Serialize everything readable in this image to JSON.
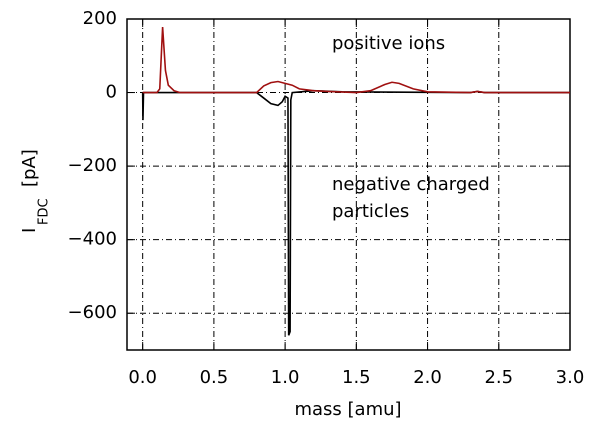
{
  "chart_data": {
    "type": "line",
    "xlabel": "mass [amu]",
    "ylabel": "I",
    "ylabel_sub": "FDC",
    "ylabel_unit": "[pA]",
    "annotations": [
      "positive ions",
      "negative charged",
      "particles"
    ],
    "xlim": [
      -0.11,
      3.0
    ],
    "xticks": [
      {
        "value": 0,
        "label": "0.0"
      },
      0.5,
      {
        "value": 1,
        "label": "1.0"
      },
      1.5,
      {
        "value": 2,
        "label": "2.0"
      },
      2.5,
      {
        "value": 3,
        "label": "3.0"
      }
    ],
    "ylim": [
      -700,
      200
    ],
    "yticks": [
      {
        "value": -600,
        "label": "−600"
      },
      {
        "value": -400,
        "label": "−400"
      },
      {
        "value": -200,
        "label": "−200"
      },
      0,
      200
    ],
    "grid": true,
    "series": [
      {
        "color": "#000000",
        "x": [
          0.0,
          0.002,
          0.006,
          0.1,
          0.8,
          0.85,
          0.9,
          0.95,
          0.98,
          1.0,
          1.02,
          1.025,
          1.035,
          1.04,
          1.05,
          1.2,
          1.4,
          2.3,
          2.35,
          2.4,
          3.0
        ],
        "values": [
          0,
          -75,
          0,
          0,
          0,
          -15,
          -30,
          -35,
          -25,
          -10,
          -15,
          -660,
          -650,
          -20,
          0,
          5,
          2,
          0,
          3,
          0,
          0
        ]
      },
      {
        "color": "#a01010",
        "x": [
          0.0,
          0.1,
          0.12,
          0.14,
          0.16,
          0.18,
          0.22,
          0.26,
          0.8,
          0.85,
          0.9,
          0.95,
          1.0,
          1.05,
          1.1,
          1.2,
          1.3,
          1.5,
          1.6,
          1.7,
          1.75,
          1.8,
          1.9,
          2.0,
          2.3,
          2.35,
          2.4,
          3.0
        ],
        "values": [
          0,
          0,
          10,
          178,
          60,
          20,
          5,
          0,
          0,
          18,
          27,
          30,
          25,
          20,
          10,
          5,
          3,
          0,
          5,
          22,
          28,
          25,
          10,
          2,
          0,
          3,
          0,
          0
        ]
      }
    ]
  }
}
